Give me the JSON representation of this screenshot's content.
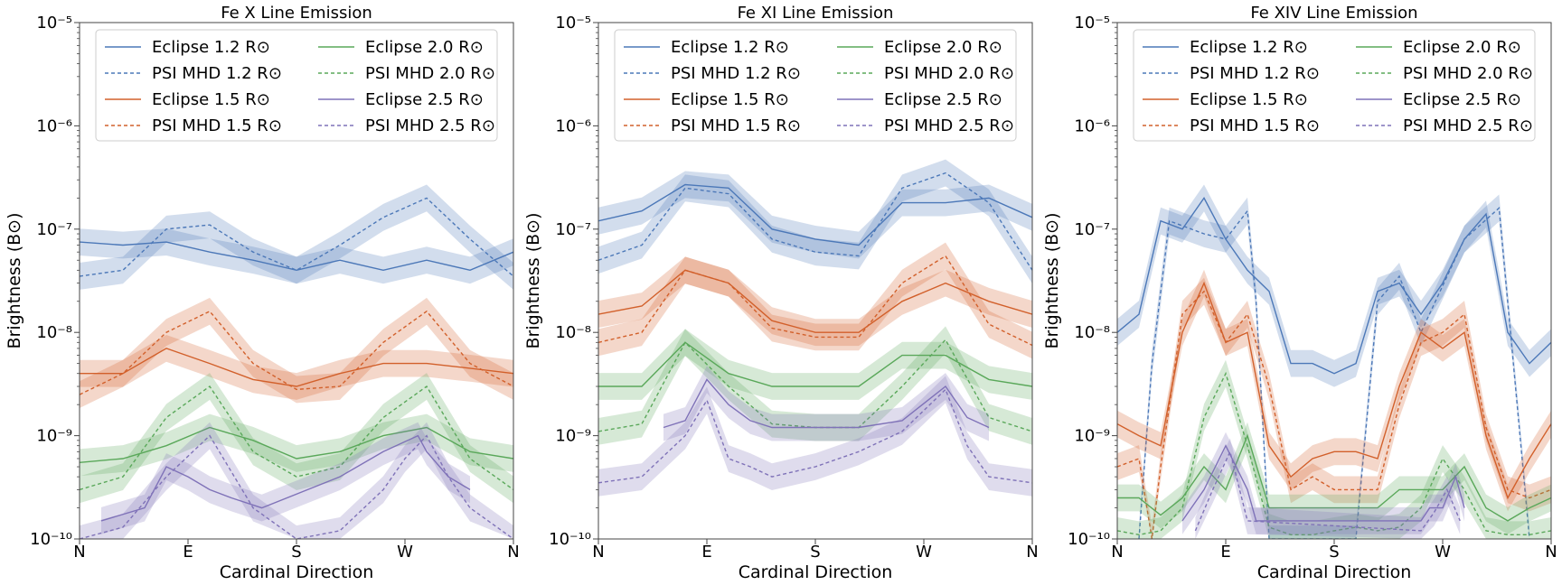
{
  "colors": {
    "blue": "#4c78b8",
    "orange": "#d2602b",
    "green": "#5aa85a",
    "purple": "#7f72b8"
  },
  "chart_data": [
    {
      "type": "line",
      "title": "Fe X Line Emission",
      "xlabel": "Cardinal Direction",
      "ylabel": "Brightness (B⊙)",
      "yscale": "log",
      "ylim": [
        1e-10,
        1e-05
      ],
      "x_ticks": [
        "N",
        "E",
        "S",
        "W",
        "N"
      ],
      "y_ticks": [
        "10⁻¹⁰",
        "10⁻⁹",
        "10⁻⁸",
        "10⁻⁷",
        "10⁻⁶",
        "10⁻⁵"
      ],
      "legend_loc": "upper-center",
      "series": [
        {
          "name": "Eclipse 1.2 R⊙",
          "color": "blue",
          "style": "solid",
          "x": [
            0,
            0.1,
            0.2,
            0.3,
            0.4,
            0.5,
            0.6,
            0.7,
            0.8,
            0.9,
            1.0
          ],
          "values": [
            7.5e-08,
            7e-08,
            7.5e-08,
            6e-08,
            5e-08,
            4e-08,
            5e-08,
            4e-08,
            5e-08,
            4e-08,
            6e-08
          ]
        },
        {
          "name": "PSI MHD 1.2 R⊙",
          "color": "blue",
          "style": "dashed",
          "x": [
            0,
            0.1,
            0.2,
            0.3,
            0.4,
            0.5,
            0.6,
            0.7,
            0.8,
            0.9,
            1.0
          ],
          "values": [
            3.5e-08,
            4e-08,
            1e-07,
            1.1e-07,
            6e-08,
            4e-08,
            7e-08,
            1.3e-07,
            2e-07,
            8e-08,
            3.5e-08
          ]
        },
        {
          "name": "Eclipse 1.5 R⊙",
          "color": "orange",
          "style": "solid",
          "x": [
            0,
            0.1,
            0.2,
            0.3,
            0.4,
            0.5,
            0.6,
            0.7,
            0.8,
            0.9,
            1.0
          ],
          "values": [
            4e-09,
            4e-09,
            7e-09,
            5e-09,
            3.5e-09,
            3e-09,
            4e-09,
            5e-09,
            5e-09,
            4.5e-09,
            4e-09
          ]
        },
        {
          "name": "PSI MHD 1.5 R⊙",
          "color": "orange",
          "style": "dashed",
          "x": [
            0,
            0.1,
            0.2,
            0.3,
            0.4,
            0.5,
            0.6,
            0.7,
            0.8,
            0.9,
            1.0
          ],
          "values": [
            2.5e-09,
            4e-09,
            1e-08,
            1.6e-08,
            5e-09,
            2.8e-09,
            3e-09,
            8e-09,
            1.6e-08,
            5e-09,
            3e-09
          ]
        },
        {
          "name": "Eclipse 2.0 R⊙",
          "color": "green",
          "style": "solid",
          "x": [
            0,
            0.1,
            0.2,
            0.3,
            0.4,
            0.5,
            0.6,
            0.7,
            0.8,
            0.9,
            1.0
          ],
          "values": [
            5.5e-10,
            6e-10,
            8e-10,
            1.2e-09,
            9e-10,
            6e-10,
            7e-10,
            1e-09,
            1.2e-09,
            7e-10,
            6e-10
          ]
        },
        {
          "name": "PSI MHD 2.0 R⊙",
          "color": "green",
          "style": "dashed",
          "x": [
            0,
            0.1,
            0.2,
            0.3,
            0.4,
            0.5,
            0.6,
            0.7,
            0.8,
            0.9,
            1.0
          ],
          "values": [
            3e-10,
            4e-10,
            1.5e-09,
            3e-09,
            7e-10,
            4e-10,
            5e-10,
            1.5e-09,
            3e-09,
            6e-10,
            3e-10
          ]
        },
        {
          "name": "Eclipse 2.5 R⊙",
          "color": "purple",
          "style": "solid",
          "x": [
            0.05,
            0.15,
            0.2,
            0.25,
            0.3,
            0.35,
            0.42,
            0.6,
            0.7,
            0.78,
            0.8,
            0.85,
            0.9
          ],
          "values": [
            1.5e-10,
            2e-10,
            5e-10,
            4e-10,
            3e-10,
            2.5e-10,
            2e-10,
            4e-10,
            7e-10,
            1e-09,
            7e-10,
            4e-10,
            3e-10
          ]
        },
        {
          "name": "PSI MHD 2.5 R⊙",
          "color": "purple",
          "style": "dashed",
          "x": [
            0,
            0.1,
            0.2,
            0.3,
            0.4,
            0.5,
            0.6,
            0.7,
            0.75,
            0.8,
            0.85,
            0.9,
            1.0
          ],
          "values": [
            1e-10,
            1.3e-10,
            4e-10,
            1e-09,
            2e-10,
            1e-10,
            1.2e-10,
            3e-10,
            6e-10,
            1e-09,
            4e-10,
            2e-10,
            1e-10
          ]
        }
      ]
    },
    {
      "type": "line",
      "title": "Fe XI Line Emission",
      "xlabel": "Cardinal Direction",
      "ylabel": "Brightness (B⊙)",
      "yscale": "log",
      "ylim": [
        1e-10,
        1e-05
      ],
      "x_ticks": [
        "N",
        "E",
        "S",
        "W",
        "N"
      ],
      "y_ticks": [
        "10⁻¹⁰",
        "10⁻⁹",
        "10⁻⁸",
        "10⁻⁷",
        "10⁻⁶",
        "10⁻⁵"
      ],
      "legend_loc": "upper-center",
      "series": [
        {
          "name": "Eclipse 1.2 R⊙",
          "color": "blue",
          "style": "solid",
          "x": [
            0,
            0.1,
            0.2,
            0.3,
            0.4,
            0.5,
            0.6,
            0.7,
            0.8,
            0.9,
            1.0
          ],
          "values": [
            1.2e-07,
            1.5e-07,
            2.7e-07,
            2.5e-07,
            1e-07,
            8e-08,
            7e-08,
            1.8e-07,
            1.8e-07,
            2e-07,
            1.3e-07
          ]
        },
        {
          "name": "PSI MHD 1.2 R⊙",
          "color": "blue",
          "style": "dashed",
          "x": [
            0,
            0.1,
            0.2,
            0.3,
            0.4,
            0.5,
            0.6,
            0.7,
            0.8,
            0.9,
            1.0
          ],
          "values": [
            5e-08,
            7e-08,
            2.5e-07,
            2.2e-07,
            8e-08,
            6e-08,
            5.5e-08,
            2.5e-07,
            3.5e-07,
            1.8e-07,
            4e-08
          ]
        },
        {
          "name": "Eclipse 1.5 R⊙",
          "color": "orange",
          "style": "solid",
          "x": [
            0,
            0.1,
            0.2,
            0.3,
            0.4,
            0.5,
            0.6,
            0.7,
            0.8,
            0.9,
            1.0
          ],
          "values": [
            1.5e-08,
            1.8e-08,
            4e-08,
            3e-08,
            1.3e-08,
            1e-08,
            1e-08,
            2e-08,
            3e-08,
            2e-08,
            1.5e-08
          ]
        },
        {
          "name": "PSI MHD 1.5 R⊙",
          "color": "orange",
          "style": "dashed",
          "x": [
            0,
            0.1,
            0.2,
            0.3,
            0.4,
            0.5,
            0.6,
            0.7,
            0.8,
            0.9,
            1.0
          ],
          "values": [
            8e-09,
            1e-08,
            4e-08,
            3e-08,
            1.1e-08,
            9e-09,
            9e-09,
            3e-08,
            5.5e-08,
            1.2e-08,
            7.5e-09
          ]
        },
        {
          "name": "Eclipse 2.0 R⊙",
          "color": "green",
          "style": "solid",
          "x": [
            0,
            0.1,
            0.2,
            0.3,
            0.4,
            0.5,
            0.6,
            0.7,
            0.8,
            0.9,
            1.0
          ],
          "values": [
            3e-09,
            3e-09,
            8e-09,
            4e-09,
            3e-09,
            3e-09,
            3e-09,
            6e-09,
            6e-09,
            3.5e-09,
            3e-09
          ]
        },
        {
          "name": "PSI MHD 2.0 R⊙",
          "color": "green",
          "style": "dashed",
          "x": [
            0,
            0.1,
            0.2,
            0.3,
            0.4,
            0.5,
            0.6,
            0.7,
            0.8,
            0.9,
            1.0
          ],
          "values": [
            1.1e-09,
            1.3e-09,
            8e-09,
            3e-09,
            1.3e-09,
            1.2e-09,
            1.2e-09,
            3e-09,
            8.5e-09,
            1.5e-09,
            1.1e-09
          ]
        },
        {
          "name": "Eclipse 2.5 R⊙",
          "color": "purple",
          "style": "solid",
          "x": [
            0.15,
            0.2,
            0.25,
            0.3,
            0.35,
            0.4,
            0.5,
            0.6,
            0.7,
            0.8,
            0.85,
            0.9
          ],
          "values": [
            1.2e-09,
            1.4e-09,
            3.5e-09,
            2e-09,
            1.4e-09,
            1.2e-09,
            1.2e-09,
            1.2e-09,
            1.4e-09,
            3e-09,
            1.5e-09,
            1.2e-09
          ]
        },
        {
          "name": "PSI MHD 2.5 R⊙",
          "color": "purple",
          "style": "dashed",
          "x": [
            0,
            0.1,
            0.2,
            0.25,
            0.3,
            0.35,
            0.4,
            0.5,
            0.6,
            0.7,
            0.8,
            0.85,
            0.9,
            1.0
          ],
          "values": [
            3.5e-10,
            4e-10,
            1e-09,
            2.2e-09,
            6e-10,
            5e-10,
            4e-10,
            5e-10,
            7e-10,
            1.1e-09,
            2.8e-09,
            8e-10,
            4e-10,
            3.5e-10
          ]
        }
      ]
    },
    {
      "type": "line",
      "title": "Fe XIV Line Emission",
      "xlabel": "Cardinal Direction",
      "ylabel": "Brightness (B⊙)",
      "yscale": "log",
      "ylim": [
        1e-10,
        1e-05
      ],
      "x_ticks": [
        "N",
        "E",
        "S",
        "W",
        "N"
      ],
      "y_ticks": [
        "10⁻¹⁰",
        "10⁻⁹",
        "10⁻⁸",
        "10⁻⁷",
        "10⁻⁶",
        "10⁻⁵"
      ],
      "legend_loc": "upper-center",
      "series": [
        {
          "name": "Eclipse 1.2 R⊙",
          "color": "blue",
          "style": "solid",
          "x": [
            0,
            0.05,
            0.1,
            0.15,
            0.2,
            0.25,
            0.3,
            0.35,
            0.4,
            0.45,
            0.5,
            0.55,
            0.6,
            0.65,
            0.7,
            0.75,
            0.8,
            0.85,
            0.9,
            0.95,
            1.0
          ],
          "values": [
            1e-08,
            1.5e-08,
            1.2e-07,
            1e-07,
            2e-07,
            8e-08,
            4e-08,
            2.5e-08,
            5e-09,
            5e-09,
            4e-09,
            5e-09,
            2.5e-08,
            3e-08,
            1.5e-08,
            3e-08,
            8e-08,
            1.4e-07,
            1e-08,
            5e-09,
            8e-09
          ]
        },
        {
          "name": "PSI MHD 1.2 R⊙",
          "color": "blue",
          "style": "dashed",
          "x": [
            0.05,
            0.08,
            0.12,
            0.2,
            0.25,
            0.3,
            0.32,
            0.35,
            0.55,
            0.6,
            0.65,
            0.7,
            0.8,
            0.88,
            0.95
          ],
          "values": [
            1e-10,
            5e-09,
            1.2e-07,
            9e-08,
            8e-08,
            1.5e-07,
            2e-08,
            1e-10,
            1e-10,
            2e-08,
            3.5e-08,
            1e-08,
            8e-08,
            1.6e-07,
            1e-10
          ]
        },
        {
          "name": "Eclipse 1.5 R⊙",
          "color": "orange",
          "style": "solid",
          "x": [
            0,
            0.05,
            0.1,
            0.15,
            0.2,
            0.25,
            0.3,
            0.35,
            0.4,
            0.45,
            0.5,
            0.55,
            0.6,
            0.65,
            0.7,
            0.75,
            0.8,
            0.85,
            0.9,
            0.95,
            1.0
          ],
          "values": [
            1.3e-09,
            1e-09,
            8e-10,
            1e-08,
            3e-08,
            8e-09,
            1e-08,
            8e-10,
            4e-10,
            6e-10,
            7e-10,
            7e-10,
            6e-10,
            3e-09,
            1e-08,
            7e-09,
            1e-08,
            1e-09,
            2.5e-10,
            6e-10,
            1.3e-09
          ]
        },
        {
          "name": "PSI MHD 1.5 R⊙",
          "color": "orange",
          "style": "dashed",
          "x": [
            0,
            0.05,
            0.08,
            0.1,
            0.15,
            0.2,
            0.25,
            0.3,
            0.35,
            0.4,
            0.45,
            0.5,
            0.6,
            0.65,
            0.7,
            0.75,
            0.8,
            0.85,
            0.9,
            0.95,
            1.0
          ],
          "values": [
            5e-10,
            6e-10,
            1e-10,
            5e-10,
            1.5e-08,
            2.5e-08,
            8e-09,
            1.5e-08,
            3e-09,
            3e-10,
            4e-10,
            3e-10,
            3e-10,
            2e-09,
            8e-09,
            1e-08,
            1.5e-08,
            1.2e-09,
            3e-10,
            2.5e-10,
            3e-10
          ]
        },
        {
          "name": "Eclipse 2.0 R⊙",
          "color": "green",
          "style": "solid",
          "x": [
            0,
            0.05,
            0.1,
            0.15,
            0.2,
            0.25,
            0.3,
            0.35,
            0.4,
            0.45,
            0.5,
            0.55,
            0.6,
            0.65,
            0.7,
            0.75,
            0.8,
            0.85,
            0.9,
            0.95,
            1.0
          ],
          "values": [
            2.5e-10,
            2.5e-10,
            1.7e-10,
            2.5e-10,
            5e-10,
            3e-10,
            1e-09,
            2e-10,
            2e-10,
            2e-10,
            2e-10,
            2e-10,
            2e-10,
            3e-10,
            3e-10,
            3e-10,
            5e-10,
            2e-10,
            1.5e-10,
            2e-10,
            2.5e-10
          ]
        },
        {
          "name": "PSI MHD 2.0 R⊙",
          "color": "green",
          "style": "dashed",
          "x": [
            0,
            0.05,
            0.1,
            0.15,
            0.2,
            0.25,
            0.3,
            0.35,
            0.4,
            0.45,
            0.5,
            0.55,
            0.6,
            0.65,
            0.7,
            0.75,
            0.8,
            0.85,
            0.9,
            0.95,
            1.0
          ],
          "values": [
            1.2e-10,
            1.1e-10,
            1.2e-10,
            2e-10,
            1.5e-09,
            4e-09,
            8e-10,
            1.3e-10,
            1.1e-10,
            1.1e-10,
            1.2e-10,
            1.3e-10,
            1.2e-10,
            1.3e-10,
            2e-10,
            6e-10,
            3e-10,
            1.2e-10,
            1.1e-10,
            1.1e-10,
            1.2e-10
          ]
        },
        {
          "name": "Eclipse 2.5 R⊙",
          "color": "purple",
          "style": "solid",
          "x": [
            0.15,
            0.2,
            0.25,
            0.3,
            0.32,
            0.7,
            0.72,
            0.75,
            0.78,
            0.8
          ],
          "values": [
            1.5e-10,
            3e-10,
            8e-10,
            3e-10,
            1.5e-10,
            1.5e-10,
            2e-10,
            2e-10,
            4e-10,
            2e-10
          ]
        },
        {
          "name": "PSI MHD 2.5 R⊙",
          "color": "purple",
          "style": "dashed",
          "x": [
            0.18,
            0.22,
            0.26,
            0.3,
            0.7,
            0.73,
            0.76,
            0.79
          ],
          "values": [
            1.2e-10,
            3e-10,
            7e-10,
            1.5e-10,
            1.2e-10,
            1.8e-10,
            3e-10,
            1.5e-10
          ]
        }
      ]
    }
  ]
}
